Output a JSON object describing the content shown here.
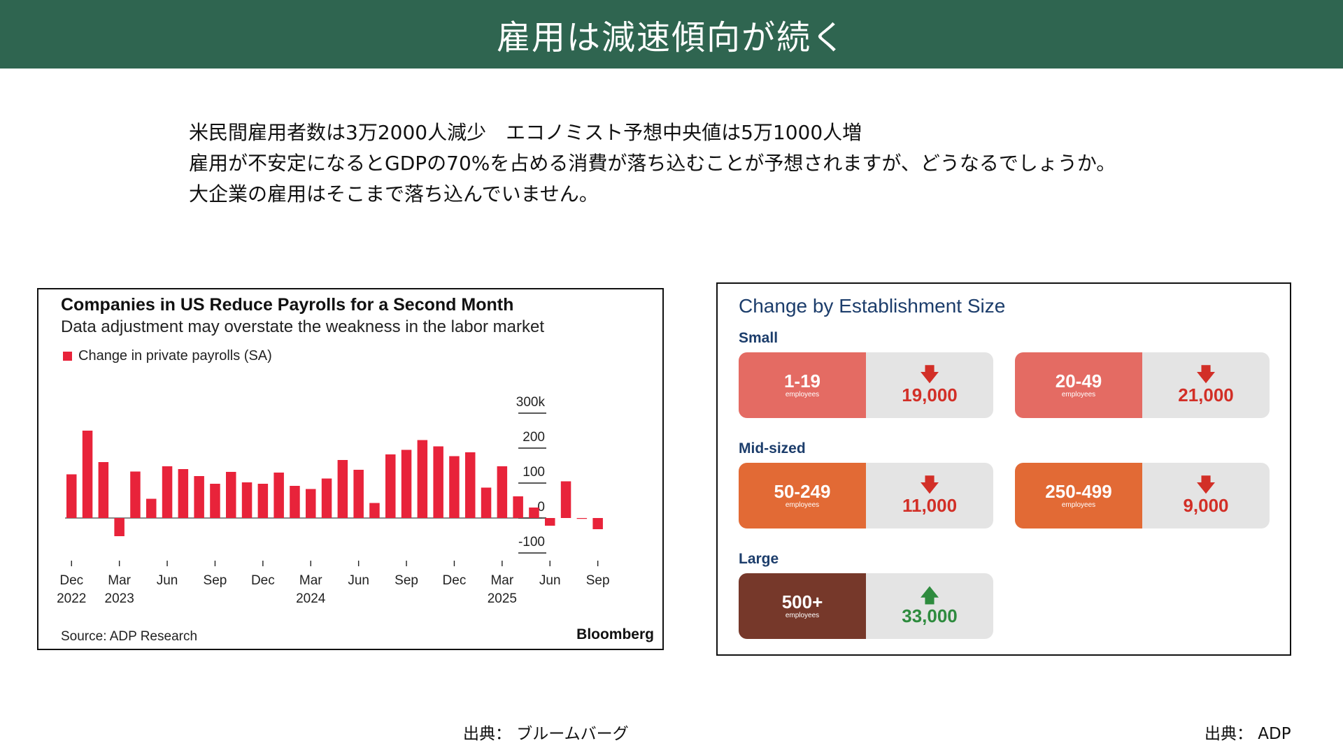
{
  "header": {
    "title": "雇用は減速傾向が続く"
  },
  "intro": {
    "lines": [
      "米民間雇用者数は3万2000人減少　エコノミスト予想中央値は5万1000人増",
      "雇用が不安定になるとGDPの70%を占める消費が落ち込むことが予想されますが、どうなるでしょうか。",
      "大企業の雇用はそこまで落ち込んでいません。"
    ]
  },
  "left_chart": {
    "title": "Companies in US Reduce Payrolls for a Second Month",
    "subtitle": "Data adjustment may overstate the weakness in the labor market",
    "legend": "Change in private payrolls (SA)",
    "source": "Source: ADP Research",
    "brand": "Bloomberg",
    "bar_color": "#e8233a"
  },
  "right_chart": {
    "title": "Change by Establishment Size",
    "groups": {
      "small": "Small",
      "mid": "Mid-sized",
      "large": "Large"
    },
    "cards": [
      {
        "size": "1-19",
        "unit": "employees",
        "arrow": "down",
        "amount": "19,000",
        "color": "#e46b63"
      },
      {
        "size": "20-49",
        "unit": "employees",
        "arrow": "down",
        "amount": "21,000",
        "color": "#e46b63"
      },
      {
        "size": "50-249",
        "unit": "employees",
        "arrow": "down",
        "amount": "11,000",
        "color": "#e26a35"
      },
      {
        "size": "250-499",
        "unit": "employees",
        "arrow": "down",
        "amount": "9,000",
        "color": "#e26a35"
      },
      {
        "size": "500+",
        "unit": "employees",
        "arrow": "up",
        "amount": "33,000",
        "color": "#76382a"
      }
    ]
  },
  "citations": {
    "left": "出典：  ブルームバーグ",
    "right": "出典：  ADP"
  },
  "chart_data": [
    {
      "type": "bar",
      "title": "Companies in US Reduce Payrolls for a Second Month",
      "subtitle": "Data adjustment may overstate the weakness in the labor market",
      "ylabel": "",
      "xlabel": "",
      "ylim": [
        -100,
        300
      ],
      "yticks": [
        {
          "value": 300,
          "label": "300k"
        },
        {
          "value": 200,
          "label": "200"
        },
        {
          "value": 100,
          "label": "100"
        },
        {
          "value": 0,
          "label": "0"
        },
        {
          "value": -100,
          "label": "-100"
        }
      ],
      "axis_side": "right",
      "x_ticks": [
        {
          "index": 0,
          "label": "Dec",
          "year": "2022"
        },
        {
          "index": 3,
          "label": "Mar",
          "year": "2023"
        },
        {
          "index": 6,
          "label": "Jun",
          "year": ""
        },
        {
          "index": 9,
          "label": "Sep",
          "year": ""
        },
        {
          "index": 12,
          "label": "Dec",
          "year": ""
        },
        {
          "index": 15,
          "label": "Mar",
          "year": "2024"
        },
        {
          "index": 18,
          "label": "Jun",
          "year": ""
        },
        {
          "index": 21,
          "label": "Sep",
          "year": ""
        },
        {
          "index": 24,
          "label": "Dec",
          "year": ""
        },
        {
          "index": 27,
          "label": "Mar",
          "year": "2025"
        },
        {
          "index": 30,
          "label": "Jun",
          "year": ""
        },
        {
          "index": 33,
          "label": "Sep",
          "year": ""
        }
      ],
      "series": [
        {
          "name": "Change in private payrolls (SA)",
          "values": [
            125,
            250,
            160,
            -52,
            133,
            55,
            148,
            140,
            120,
            98,
            132,
            102,
            98,
            130,
            92,
            83,
            113,
            166,
            138,
            43,
            182,
            195,
            223,
            205,
            177,
            188,
            87,
            148,
            62,
            30,
            -22,
            105,
            -2,
            -32
          ]
        }
      ]
    }
  ]
}
